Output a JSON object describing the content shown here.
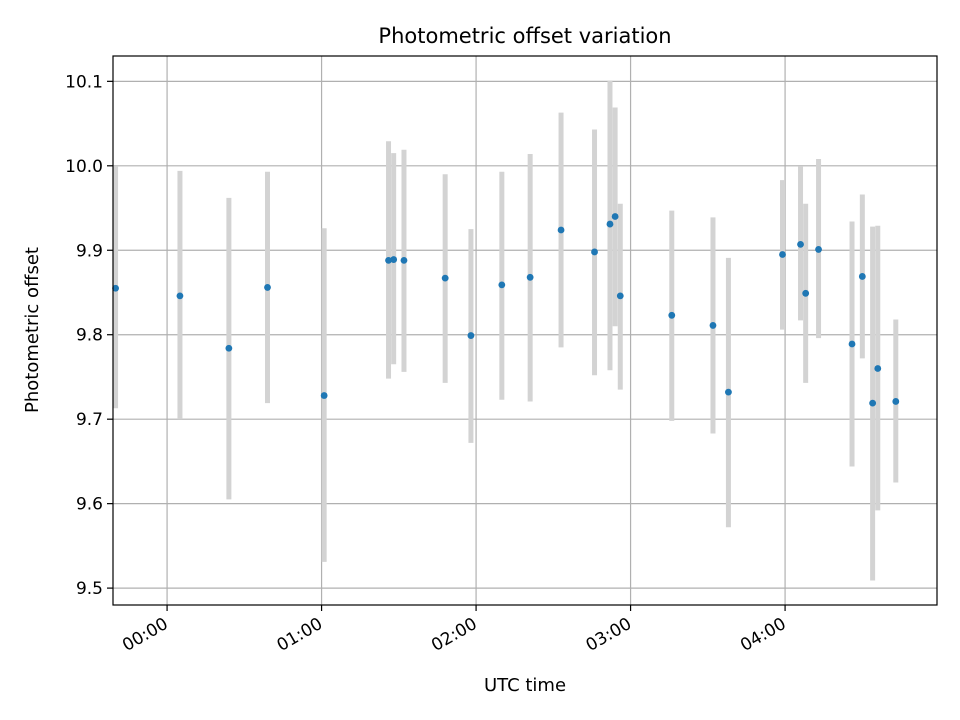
{
  "chart_data": {
    "type": "scatter",
    "title": "Photometric offset variation",
    "xlabel": "UTC time",
    "ylabel": "Photometric offset",
    "x_tick_labels": [
      "00:00",
      "01:00",
      "02:00",
      "03:00",
      "04:00"
    ],
    "x_tick_values": [
      "00:00",
      "01:00",
      "02:00",
      "03:00",
      "04:00"
    ],
    "y_tick_values": [
      9.5,
      9.6,
      9.7,
      9.8,
      9.9,
      10.0,
      10.1
    ],
    "y_tick_labels": [
      "9.5",
      "9.6",
      "9.7",
      "9.8",
      "9.9",
      "10.0",
      "10.1"
    ],
    "xlim": [
      "23:39",
      "04:59"
    ],
    "ylim": [
      9.48,
      10.13
    ],
    "grid": true,
    "point_color": "#1f77b4",
    "errorbar_color": "#d3d3d3",
    "points": [
      {
        "x": "23:40",
        "y": 9.855,
        "lo": 9.713,
        "hi": 9.999
      },
      {
        "x": "00:05",
        "y": 9.846,
        "lo": 9.7,
        "hi": 9.994
      },
      {
        "x": "00:24",
        "y": 9.784,
        "lo": 9.605,
        "hi": 9.962
      },
      {
        "x": "00:39",
        "y": 9.856,
        "lo": 9.719,
        "hi": 9.993
      },
      {
        "x": "01:01",
        "y": 9.728,
        "lo": 9.531,
        "hi": 9.926
      },
      {
        "x": "01:26",
        "y": 9.888,
        "lo": 9.748,
        "hi": 10.029
      },
      {
        "x": "01:28",
        "y": 9.889,
        "lo": 9.765,
        "hi": 10.015
      },
      {
        "x": "01:32",
        "y": 9.888,
        "lo": 9.756,
        "hi": 10.019
      },
      {
        "x": "01:48",
        "y": 9.867,
        "lo": 9.743,
        "hi": 9.99
      },
      {
        "x": "01:58",
        "y": 9.799,
        "lo": 9.672,
        "hi": 9.925
      },
      {
        "x": "02:10",
        "y": 9.859,
        "lo": 9.723,
        "hi": 9.993
      },
      {
        "x": "02:21",
        "y": 9.868,
        "lo": 9.721,
        "hi": 10.014
      },
      {
        "x": "02:33",
        "y": 9.924,
        "lo": 9.785,
        "hi": 10.063
      },
      {
        "x": "02:46",
        "y": 9.898,
        "lo": 9.752,
        "hi": 10.043
      },
      {
        "x": "02:52",
        "y": 9.931,
        "lo": 9.758,
        "hi": 10.101
      },
      {
        "x": "02:54",
        "y": 9.94,
        "lo": 9.81,
        "hi": 10.069
      },
      {
        "x": "02:56",
        "y": 9.846,
        "lo": 9.735,
        "hi": 9.955
      },
      {
        "x": "03:16",
        "y": 9.823,
        "lo": 9.698,
        "hi": 9.947
      },
      {
        "x": "03:32",
        "y": 9.811,
        "lo": 9.683,
        "hi": 9.939
      },
      {
        "x": "03:38",
        "y": 9.732,
        "lo": 9.572,
        "hi": 9.891
      },
      {
        "x": "03:59",
        "y": 9.895,
        "lo": 9.806,
        "hi": 9.983
      },
      {
        "x": "04:06",
        "y": 9.907,
        "lo": 9.817,
        "hi": 9.999
      },
      {
        "x": "04:08",
        "y": 9.849,
        "lo": 9.743,
        "hi": 9.955
      },
      {
        "x": "04:13",
        "y": 9.901,
        "lo": 9.796,
        "hi": 10.008
      },
      {
        "x": "04:26",
        "y": 9.789,
        "lo": 9.644,
        "hi": 9.934
      },
      {
        "x": "04:30",
        "y": 9.869,
        "lo": 9.772,
        "hi": 9.966
      },
      {
        "x": "04:34",
        "y": 9.719,
        "lo": 9.509,
        "hi": 9.928
      },
      {
        "x": "04:36",
        "y": 9.76,
        "lo": 9.592,
        "hi": 9.929
      },
      {
        "x": "04:43",
        "y": 9.721,
        "lo": 9.625,
        "hi": 9.818
      }
    ]
  }
}
